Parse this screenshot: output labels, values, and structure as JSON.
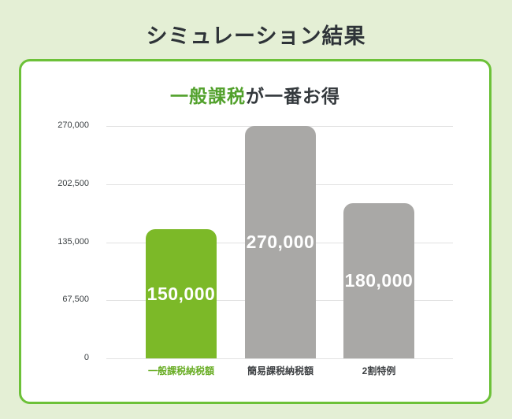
{
  "page": {
    "title": "シミュレーション結果",
    "bg_color": "#e4efd5"
  },
  "card": {
    "border_color": "#6cc138",
    "title_highlight": "一般課税",
    "title_rest": "が一番お得",
    "title_highlight_color": "#52a12c"
  },
  "chart_data": {
    "type": "bar",
    "title": "一般課税が一番お得",
    "categories": [
      "一般課税納税額",
      "簡易課税納税額",
      "2割特例"
    ],
    "values": [
      150000,
      270000,
      180000
    ],
    "value_labels": [
      "150,000",
      "270,000",
      "180,000"
    ],
    "bar_colors": [
      "#7cb928",
      "#a9a8a6",
      "#a9a8a6"
    ],
    "category_label_colors": [
      "#69ad25",
      "#3f4245",
      "#3f4245"
    ],
    "highlight_index": 0,
    "value_text_color": "#ffffff",
    "yticks": [
      0,
      67500,
      135000,
      202500,
      270000
    ],
    "ytick_labels": [
      "0",
      "67,500",
      "135,000",
      "202,500",
      "270,000"
    ],
    "ylim": [
      0,
      270000
    ],
    "grid": true,
    "legend": false,
    "xlabel": "",
    "ylabel": ""
  }
}
